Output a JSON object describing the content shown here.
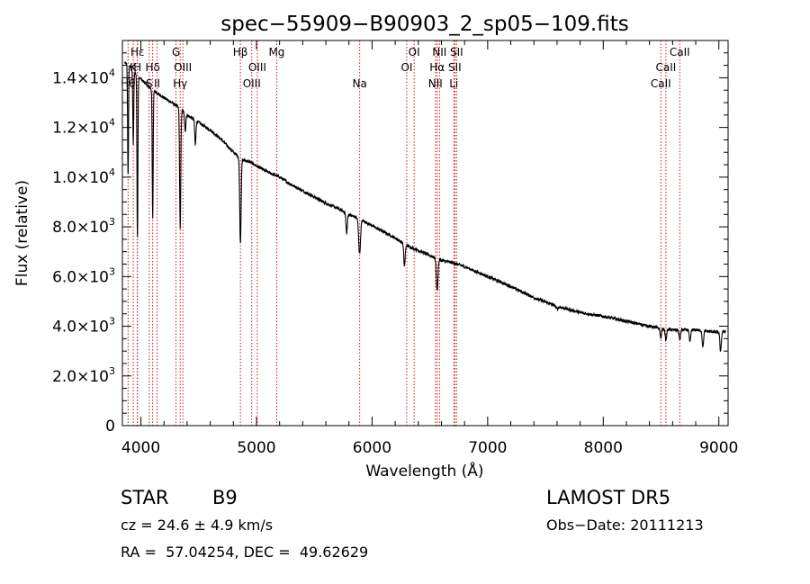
{
  "chart_data": {
    "type": "line",
    "title": "spec−55909−B90903_2_sp05−109.fits",
    "xlabel": "Wavelength (Å)",
    "ylabel": "Flux (relative)",
    "xlim": [
      3840,
      9080
    ],
    "ylim": [
      0,
      15500
    ],
    "grid": false,
    "x_ticks": [
      4000,
      5000,
      6000,
      7000,
      8000,
      9000
    ],
    "x_tick_labels": [
      "4000",
      "5000",
      "6000",
      "7000",
      "8000",
      "9000"
    ],
    "y_ticks": [
      {
        "value": 0,
        "mantissa": "0",
        "exp": ""
      },
      {
        "value": 2000,
        "mantissa": "2.0×10",
        "exp": "3"
      },
      {
        "value": 4000,
        "mantissa": "4.0×10",
        "exp": "3"
      },
      {
        "value": 6000,
        "mantissa": "6.0×10",
        "exp": "3"
      },
      {
        "value": 8000,
        "mantissa": "8.0×10",
        "exp": "3"
      },
      {
        "value": 10000,
        "mantissa": "1.0×10",
        "exp": "4"
      },
      {
        "value": 12000,
        "mantissa": "1.2×10",
        "exp": "4"
      },
      {
        "value": 14000,
        "mantissa": "1.4×10",
        "exp": "4"
      }
    ],
    "continuum": [
      [
        3860,
        14600
      ],
      [
        3900,
        14500
      ],
      [
        3950,
        14200
      ],
      [
        4000,
        13950
      ],
      [
        4100,
        13500
      ],
      [
        4200,
        13200
      ],
      [
        4300,
        12900
      ],
      [
        4400,
        12500
      ],
      [
        4500,
        12200
      ],
      [
        4600,
        11900
      ],
      [
        4700,
        11500
      ],
      [
        4800,
        11000
      ],
      [
        4880,
        10700
      ],
      [
        4950,
        10600
      ],
      [
        5000,
        10450
      ],
      [
        5100,
        10200
      ],
      [
        5200,
        10000
      ],
      [
        5300,
        9700
      ],
      [
        5400,
        9450
      ],
      [
        5500,
        9200
      ],
      [
        5600,
        8950
      ],
      [
        5700,
        8750
      ],
      [
        5800,
        8500
      ],
      [
        5900,
        8300
      ],
      [
        6000,
        8050
      ],
      [
        6100,
        7800
      ],
      [
        6200,
        7550
      ],
      [
        6300,
        7250
      ],
      [
        6400,
        7050
      ],
      [
        6500,
        6850
      ],
      [
        6600,
        6650
      ],
      [
        6700,
        6550
      ],
      [
        6800,
        6400
      ],
      [
        7000,
        6000
      ],
      [
        7200,
        5600
      ],
      [
        7400,
        5150
      ],
      [
        7600,
        4800
      ],
      [
        7800,
        4550
      ],
      [
        8000,
        4400
      ],
      [
        8200,
        4200
      ],
      [
        8400,
        4000
      ],
      [
        8500,
        3900
      ],
      [
        8600,
        3850
      ],
      [
        8800,
        3850
      ],
      [
        9000,
        3750
      ],
      [
        9060,
        3800
      ]
    ],
    "absorption": [
      {
        "center": 3889,
        "depth": 4500,
        "width": 4
      },
      {
        "center": 3934,
        "depth": 3000,
        "width": 4
      },
      {
        "center": 3970,
        "depth": 6500,
        "width": 4
      },
      {
        "center": 4102,
        "depth": 5200,
        "width": 4
      },
      {
        "center": 4340,
        "depth": 4800,
        "width": 5
      },
      {
        "center": 4384,
        "depth": 700,
        "width": 5
      },
      {
        "center": 4471,
        "depth": 1000,
        "width": 5
      },
      {
        "center": 4861,
        "depth": 3400,
        "width": 6
      },
      {
        "center": 5780,
        "depth": 800,
        "width": 6
      },
      {
        "center": 5892,
        "depth": 1400,
        "width": 8
      },
      {
        "center": 6280,
        "depth": 900,
        "width": 6
      },
      {
        "center": 6563,
        "depth": 1300,
        "width": 7
      },
      {
        "center": 7600,
        "depth": 120,
        "width": 8
      },
      {
        "center": 8498,
        "depth": 350,
        "width": 6
      },
      {
        "center": 8542,
        "depth": 450,
        "width": 6
      },
      {
        "center": 8662,
        "depth": 400,
        "width": 6
      },
      {
        "center": 8750,
        "depth": 500,
        "width": 6
      },
      {
        "center": 8862,
        "depth": 650,
        "width": 6
      },
      {
        "center": 9015,
        "depth": 800,
        "width": 6
      }
    ],
    "lines": [
      {
        "x": 3889,
        "label": "Hθ",
        "row": 3
      },
      {
        "x": 3934,
        "label": "K",
        "row": 2
      },
      {
        "x": 3970,
        "label": "Hε",
        "row": 1
      },
      {
        "x": 3970,
        "label": "H",
        "row": 2
      },
      {
        "x": 4072,
        "label": "S",
        "row": 3
      },
      {
        "x": 4102,
        "label": "Hδ",
        "row": 2
      },
      {
        "x": 4140,
        "label": "II",
        "row": 3
      },
      {
        "x": 4304,
        "label": "G",
        "row": 1
      },
      {
        "x": 4340,
        "label": "Hγ",
        "row": 3
      },
      {
        "x": 4363,
        "label": "OIII",
        "row": 2
      },
      {
        "x": 4861,
        "label": "Hβ",
        "row": 1
      },
      {
        "x": 4959,
        "label": "OIII",
        "row": 3
      },
      {
        "x": 5007,
        "label": "OIII",
        "row": 2
      },
      {
        "x": 5175,
        "label": "Mg",
        "row": 1
      },
      {
        "x": 5893,
        "label": "Na",
        "row": 3
      },
      {
        "x": 6300,
        "label": "OI",
        "row": 2
      },
      {
        "x": 6364,
        "label": "OI",
        "row": 1
      },
      {
        "x": 6548,
        "label": "NII",
        "row": 3
      },
      {
        "x": 6563,
        "label": "Hα",
        "row": 2
      },
      {
        "x": 6583,
        "label": "NII",
        "row": 1
      },
      {
        "x": 6707,
        "label": "Li",
        "row": 3
      },
      {
        "x": 6716,
        "label": "SII",
        "row": 2
      },
      {
        "x": 6731,
        "label": "SII",
        "row": 1
      },
      {
        "x": 8498,
        "label": "CaII",
        "row": 3
      },
      {
        "x": 8542,
        "label": "CaII",
        "row": 2
      },
      {
        "x": 8662,
        "label": "CaII",
        "row": 1
      }
    ]
  },
  "info": {
    "object_class": "STAR",
    "subclass": "B9",
    "survey": "LAMOST DR5",
    "redshift": "cz = 24.6 ± 4.9 km/s",
    "obs_date": "Obs−Date: 20111213",
    "coords": "RA =  57.04254, DEC =  49.62629"
  }
}
